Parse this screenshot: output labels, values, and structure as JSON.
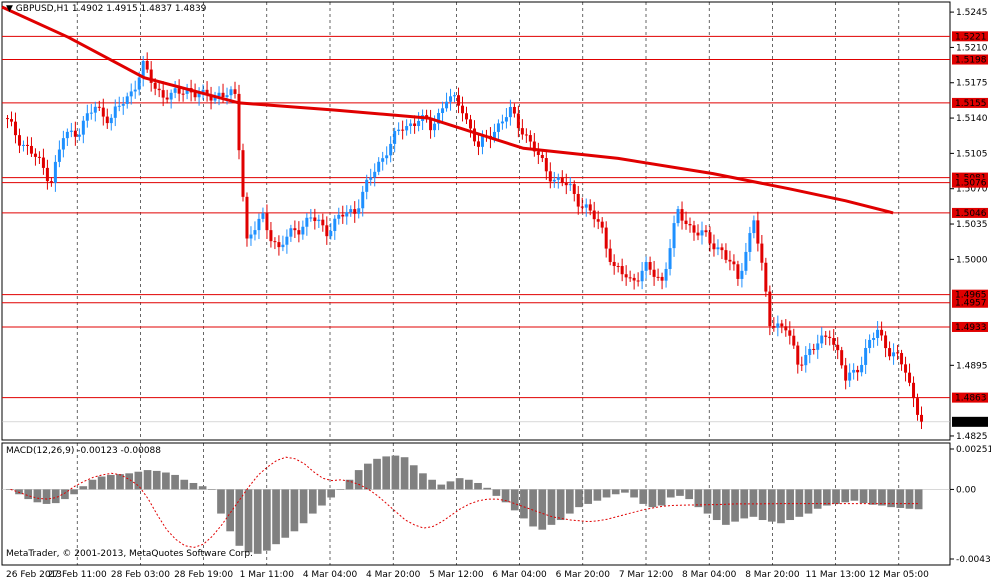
{
  "header": {
    "symbol": "GBPUSD,H1",
    "ohlc": "1.4902 1.4915 1.4837 1.4839"
  },
  "macd_header": "MACD(12,26,9) -0.00123 -0.00088",
  "copyright": "MetaTrader, © 2001-2013, MetaQuotes Software Corp.",
  "colors": {
    "background": "#ffffff",
    "bull_candle": "#1e90ff",
    "bear_candle": "#e00000",
    "moving_average": "#e00000",
    "level_line": "#e00000",
    "grid": "#000000",
    "histogram": "#808080",
    "signal": "#e00000"
  },
  "chart_data": [
    {
      "type": "candlestick",
      "title": "GBPUSD,H1",
      "ylim": [
        1.4821,
        1.5255
      ],
      "y_ticks": [
        "1.5245",
        "1.5210",
        "1.5175",
        "1.5140",
        "1.5105",
        "1.5070",
        "1.5035",
        "1.5000",
        "1.4895",
        "1.4825"
      ],
      "x_ticks": [
        "26 Feb 2013",
        "27 Feb 11:00",
        "28 Feb 03:00",
        "28 Feb 19:00",
        "1 Mar 11:00",
        "4 Mar 04:00",
        "4 Mar 20:00",
        "5 Mar 12:00",
        "6 Mar 04:00",
        "6 Mar 20:00",
        "7 Mar 12:00",
        "8 Mar 04:00",
        "8 Mar 20:00",
        "11 Mar 13:00",
        "12 Mar 05:00"
      ],
      "horizontal_levels": [
        "1.5221",
        "1.5198",
        "1.5155",
        "1.5081",
        "1.5076",
        "1.5046",
        "1.4965",
        "1.4957",
        "1.4933",
        "1.4863"
      ],
      "last_price": "1.4839",
      "price_path": [
        [
          1.514,
          1.512
        ],
        [
          1.512,
          1.51
        ],
        [
          1.51,
          1.508
        ],
        [
          1.508,
          1.512
        ],
        [
          1.512,
          1.513
        ],
        [
          1.513,
          1.515
        ],
        [
          1.515,
          1.514
        ],
        [
          1.514,
          1.516
        ],
        [
          1.516,
          1.519
        ],
        [
          1.519,
          1.517
        ],
        [
          1.517,
          1.516
        ],
        [
          1.516,
          1.517
        ],
        [
          1.517,
          1.516
        ],
        [
          1.516,
          1.5165
        ],
        [
          1.5165,
          1.516
        ],
        [
          1.516,
          1.502
        ],
        [
          1.502,
          1.504
        ],
        [
          1.504,
          1.501
        ],
        [
          1.501,
          1.503
        ],
        [
          1.503,
          1.504
        ],
        [
          1.504,
          1.503
        ],
        [
          1.503,
          1.504
        ],
        [
          1.504,
          1.505
        ],
        [
          1.505,
          1.508
        ],
        [
          1.508,
          1.511
        ],
        [
          1.511,
          1.513
        ],
        [
          1.513,
          1.514
        ],
        [
          1.514,
          1.513
        ],
        [
          1.513,
          1.516
        ],
        [
          1.516,
          1.515
        ],
        [
          1.515,
          1.511
        ],
        [
          1.511,
          1.513
        ],
        [
          1.513,
          1.5145
        ],
        [
          1.5145,
          1.513
        ],
        [
          1.513,
          1.51
        ],
        [
          1.51,
          1.508
        ],
        [
          1.508,
          1.507
        ],
        [
          1.507,
          1.505
        ],
        [
          1.505,
          1.503
        ],
        [
          1.503,
          1.499
        ],
        [
          1.499,
          1.498
        ],
        [
          1.498,
          1.499
        ],
        [
          1.499,
          1.498
        ],
        [
          1.498,
          1.5045
        ],
        [
          1.5045,
          1.503
        ],
        [
          1.503,
          1.502
        ],
        [
          1.502,
          1.501
        ],
        [
          1.501,
          1.498
        ],
        [
          1.498,
          1.504
        ],
        [
          1.504,
          1.494
        ],
        [
          1.494,
          1.493
        ],
        [
          1.493,
          1.49
        ],
        [
          1.49,
          1.491
        ],
        [
          1.491,
          1.493
        ],
        [
          1.493,
          1.488
        ],
        [
          1.488,
          1.49
        ],
        [
          1.49,
          1.493
        ],
        [
          1.493,
          1.491
        ],
        [
          1.491,
          1.489
        ],
        [
          1.489,
          1.4839
        ]
      ],
      "moving_average": [
        [
          0.0,
          1.525
        ],
        [
          0.07,
          1.522
        ],
        [
          0.15,
          1.518
        ],
        [
          0.25,
          1.5155
        ],
        [
          0.35,
          1.5148
        ],
        [
          0.45,
          1.514
        ],
        [
          0.55,
          1.511
        ],
        [
          0.65,
          1.51
        ],
        [
          0.75,
          1.5085
        ],
        [
          0.83,
          1.507
        ],
        [
          0.89,
          1.5058
        ],
        [
          0.94,
          1.5046
        ]
      ]
    },
    {
      "type": "bar",
      "title": "MACD(12,26,9)",
      "ylim": [
        -0.00432,
        0.00251
      ],
      "y_ticks": [
        "0.00251",
        "0.00",
        "-0.00432"
      ],
      "macd_value": "-0.00123",
      "signal_value": "-0.00088",
      "histogram": [
        0.0,
        -0.0003,
        -0.0006,
        -0.0008,
        -0.0009,
        -0.00085,
        -0.0006,
        -0.0003,
        0.0002,
        0.0006,
        0.0008,
        0.0009,
        0.00095,
        0.001,
        0.0011,
        0.0012,
        0.00115,
        0.00105,
        0.0009,
        0.0006,
        0.0004,
        0.0002,
        0.0,
        -0.0015,
        -0.0026,
        -0.0035,
        -0.0039,
        -0.004,
        -0.0038,
        -0.0034,
        -0.003,
        -0.0026,
        -0.0021,
        -0.0015,
        -0.001,
        -0.0005,
        0.0,
        0.0006,
        0.0012,
        0.0016,
        0.0019,
        0.00205,
        0.0021,
        0.002,
        0.0015,
        0.001,
        0.0006,
        0.0003,
        0.0005,
        0.0007,
        0.0006,
        0.0004,
        0.0001,
        -0.0004,
        -0.0008,
        -0.0013,
        -0.0018,
        -0.0023,
        -0.0025,
        -0.0022,
        -0.0019,
        -0.0015,
        -0.0011,
        -0.0009,
        -0.0007,
        -0.0005,
        -0.0003,
        -0.0002,
        -0.0005,
        -0.0009,
        -0.0011,
        -0.001,
        -0.0005,
        -0.0004,
        -0.0006,
        -0.0011,
        -0.0015,
        -0.0019,
        -0.0022,
        -0.002,
        -0.0018,
        -0.0017,
        -0.0019,
        -0.002,
        -0.0021,
        -0.0019,
        -0.0017,
        -0.0015,
        -0.0012,
        -0.001,
        -0.0009,
        -0.0008,
        -0.0007,
        -0.00085,
        -0.00095,
        -0.001,
        -0.0011,
        -0.00115,
        -0.0012,
        -0.00123
      ],
      "signal": [
        0.0,
        -0.0002,
        -0.0004,
        -0.00055,
        -0.0006,
        -0.0005,
        -0.0002,
        0.0002,
        0.0005,
        0.00075,
        0.0009,
        0.001,
        0.0009,
        0.0006,
        0.0002,
        -0.0006,
        -0.0016,
        -0.0025,
        -0.0031,
        -0.0035,
        -0.0036,
        -0.0034,
        -0.0029,
        -0.0022,
        -0.0014,
        -0.0006,
        0.0002,
        0.0009,
        0.0014,
        0.0018,
        0.002,
        0.0019,
        0.0016,
        0.0011,
        0.0007,
        0.00055,
        0.0006,
        0.0005,
        0.0003,
        0.0,
        -0.0004,
        -0.0009,
        -0.0014,
        -0.0019,
        -0.0022,
        -0.0024,
        -0.0023,
        -0.002,
        -0.0016,
        -0.0012,
        -0.0009,
        -0.0007,
        -0.0006,
        -0.0006,
        -0.0007,
        -0.0009,
        -0.0011,
        -0.0013,
        -0.0015,
        -0.0017,
        -0.0018,
        -0.0019,
        -0.00195,
        -0.002,
        -0.00195,
        -0.00185,
        -0.0017,
        -0.00155,
        -0.0014,
        -0.00125,
        -0.00115,
        -0.00105,
        -0.001,
        -0.00098,
        -0.00097,
        -0.00096,
        -0.00095,
        -0.00094,
        -0.00092,
        -0.0009,
        -0.0009,
        -0.0009,
        -0.00089,
        -0.00089,
        -0.00088,
        -0.00088,
        -0.00088,
        -0.00088,
        -0.00088,
        -0.00088,
        -0.00088,
        -0.00088,
        -0.00088,
        -0.00088,
        -0.00088,
        -0.00088,
        -0.00088,
        -0.00088,
        -0.00088,
        -0.00088
      ]
    }
  ]
}
